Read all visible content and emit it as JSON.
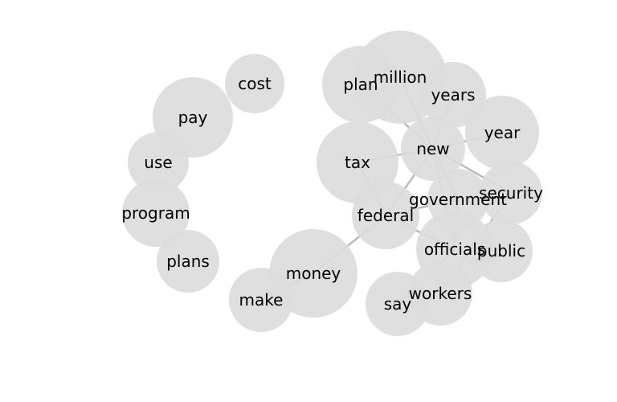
{
  "graph": {
    "nodes": [
      {
        "id": "million",
        "label": "million"
      },
      {
        "id": "plan",
        "label": "plan"
      },
      {
        "id": "years",
        "label": "years"
      },
      {
        "id": "year",
        "label": "year"
      },
      {
        "id": "new",
        "label": "new"
      },
      {
        "id": "tax",
        "label": "tax"
      },
      {
        "id": "security",
        "label": "security"
      },
      {
        "id": "government",
        "label": "government"
      },
      {
        "id": "federal",
        "label": "federal"
      },
      {
        "id": "public",
        "label": "public"
      },
      {
        "id": "officials",
        "label": "officials"
      },
      {
        "id": "money",
        "label": "money"
      },
      {
        "id": "make",
        "label": "make"
      },
      {
        "id": "workers",
        "label": "workers"
      },
      {
        "id": "say",
        "label": "say"
      },
      {
        "id": "cost",
        "label": "cost"
      },
      {
        "id": "pay",
        "label": "pay"
      },
      {
        "id": "use",
        "label": "use"
      },
      {
        "id": "program",
        "label": "program"
      },
      {
        "id": "plans",
        "label": "plans"
      }
    ],
    "edges": [
      [
        "new",
        "million"
      ],
      [
        "new",
        "plan"
      ],
      [
        "new",
        "years"
      ],
      [
        "new",
        "year"
      ],
      [
        "new",
        "tax"
      ],
      [
        "new",
        "security"
      ],
      [
        "new",
        "government"
      ],
      [
        "new",
        "federal"
      ],
      [
        "new",
        "officials"
      ],
      [
        "tax",
        "federal"
      ],
      [
        "federal",
        "money"
      ],
      [
        "federal",
        "government"
      ],
      [
        "federal",
        "officials"
      ],
      [
        "money",
        "make"
      ],
      [
        "security",
        "workers"
      ],
      [
        "government",
        "officials"
      ],
      [
        "officials",
        "say"
      ]
    ]
  }
}
